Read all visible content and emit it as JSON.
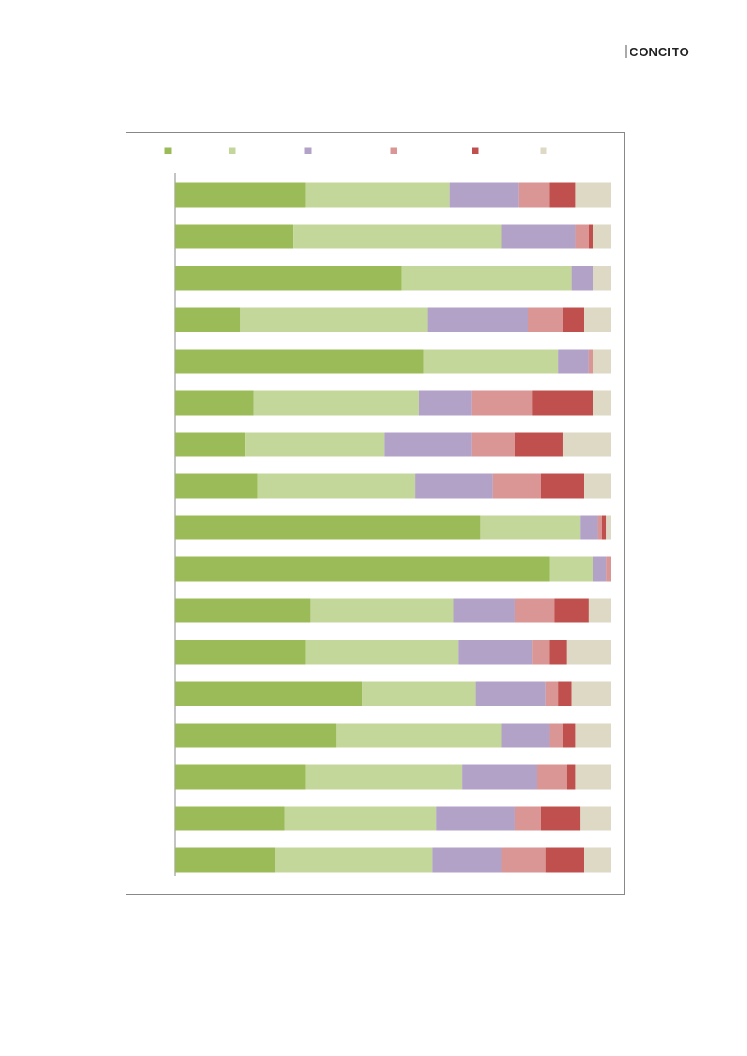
{
  "header": {
    "logo": "CONCITO"
  },
  "chart_data": {
    "type": "stacked-bar-horizontal",
    "xlim": [
      0,
      100
    ],
    "series": [
      {
        "color": "#9bbb59",
        "values": [
          30,
          27,
          52,
          15,
          57,
          18,
          16,
          19,
          70,
          86,
          31,
          30,
          43,
          37,
          30,
          25,
          23
        ]
      },
      {
        "color": "#c4d79b",
        "values": [
          33,
          48,
          39,
          43,
          31,
          38,
          32,
          36,
          23,
          10,
          33,
          35,
          26,
          38,
          36,
          35,
          36
        ]
      },
      {
        "color": "#b3a2c7",
        "values": [
          16,
          17,
          5,
          23,
          7,
          12,
          20,
          18,
          4,
          3,
          14,
          17,
          16,
          11,
          17,
          18,
          16
        ]
      },
      {
        "color": "#d99694",
        "values": [
          7,
          3,
          0,
          8,
          1,
          14,
          10,
          11,
          1,
          1,
          9,
          4,
          3,
          3,
          7,
          6,
          10
        ]
      },
      {
        "color": "#c0504d",
        "values": [
          6,
          1,
          0,
          5,
          0,
          14,
          11,
          10,
          1,
          0,
          8,
          4,
          3,
          3,
          2,
          9,
          9
        ]
      },
      {
        "color": "#ddd9c4",
        "values": [
          8,
          4,
          4,
          6,
          4,
          4,
          11,
          6,
          1,
          0,
          5,
          10,
          9,
          8,
          8,
          7,
          6
        ]
      }
    ]
  }
}
